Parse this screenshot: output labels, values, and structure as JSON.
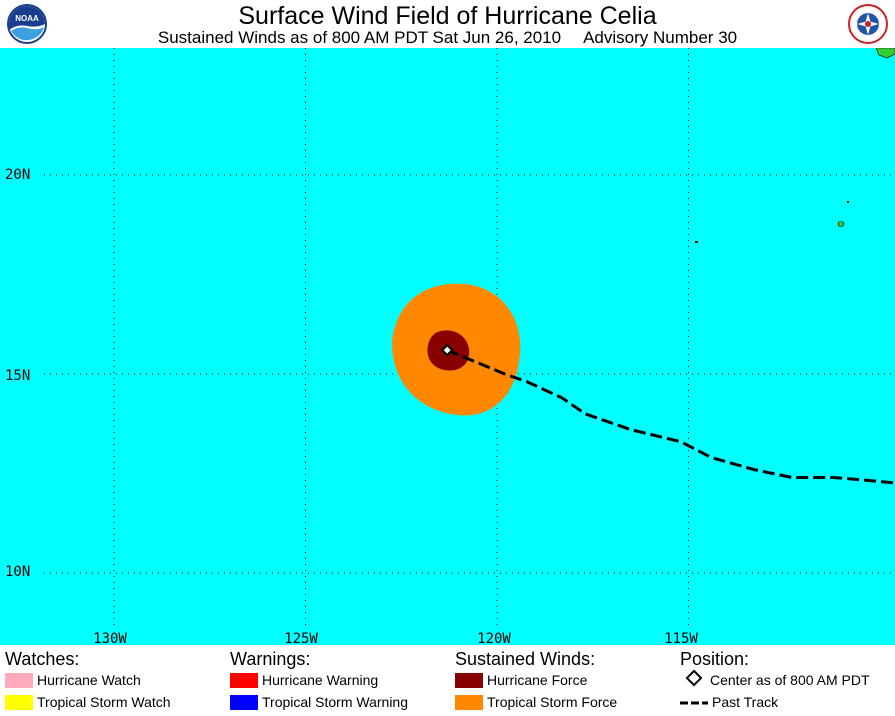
{
  "header": {
    "title": "Surface Wind Field of Hurricane Celia",
    "subtitle_left": "Sustained Winds as of 800 AM PDT Sat Jun 26, 2010",
    "subtitle_right": "Advisory Number 30",
    "logo_left": "noaa-logo",
    "logo_right": "nws-logo"
  },
  "map": {
    "ocean_color": "#00ffff",
    "land_color": "#33cc33",
    "lat_labels": [
      "20N",
      "15N",
      "10N"
    ],
    "lon_labels": [
      "130W",
      "125W",
      "120W",
      "115W"
    ],
    "center": {
      "lat": 15.6,
      "lon": -121.3
    },
    "hurricane_force_color": "#880000",
    "tropical_storm_force_color": "#ff8800",
    "past_track": [
      {
        "lat": 15.6,
        "lon": -121.3
      },
      {
        "lat": 15.0,
        "lon": -119.8
      },
      {
        "lat": 14.8,
        "lon": -119.2
      },
      {
        "lat": 14.4,
        "lon": -118.3
      },
      {
        "lat": 14.0,
        "lon": -117.7
      },
      {
        "lat": 13.6,
        "lon": -116.5
      },
      {
        "lat": 13.3,
        "lon": -115.2
      },
      {
        "lat": 12.9,
        "lon": -114.4
      },
      {
        "lat": 12.6,
        "lon": -113.3
      },
      {
        "lat": 12.4,
        "lon": -112.3
      },
      {
        "lat": 12.4,
        "lon": -111.2
      },
      {
        "lat": 12.3,
        "lon": -110.0
      },
      {
        "lat": 12.2,
        "lon": -109.0
      }
    ]
  },
  "legend": {
    "watches": {
      "title": "Watches:",
      "items": [
        {
          "label": "Hurricane Watch",
          "color": "#ffaabb"
        },
        {
          "label": "Tropical Storm Watch",
          "color": "#ffff00"
        }
      ]
    },
    "warnings": {
      "title": "Warnings:",
      "items": [
        {
          "label": "Hurricane Warning",
          "color": "#ff0000"
        },
        {
          "label": "Tropical Storm Warning",
          "color": "#0000ff"
        }
      ]
    },
    "winds": {
      "title": "Sustained Winds:",
      "items": [
        {
          "label": "Hurricane Force",
          "color": "#880000"
        },
        {
          "label": "Tropical Storm Force",
          "color": "#ff8800"
        }
      ]
    },
    "position": {
      "title": "Position:",
      "center_label": "Center as of 800 AM PDT",
      "track_label": "Past Track"
    }
  }
}
